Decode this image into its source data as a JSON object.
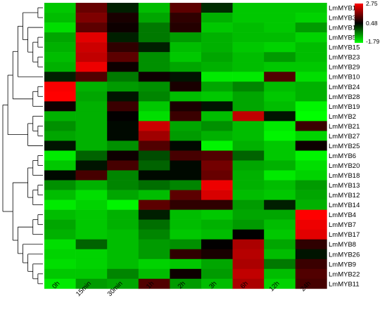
{
  "chart_data": {
    "type": "heatmap",
    "title": "",
    "xlabel": "",
    "ylabel": "",
    "columns": [
      "0h",
      "15min",
      "30min",
      "1h",
      "2h",
      "3h",
      "6h",
      "12h",
      "24h"
    ],
    "rows": [
      "LmMYB1",
      "LmMYB3",
      "LmMYB16",
      "LmMYB5",
      "LmMYB15",
      "LmMYB23",
      "LmMYB29",
      "LmMYB10",
      "LmMYB24",
      "LmMYB28",
      "LmMYB19",
      "LmMYB2",
      "LmMYB21",
      "LmMYB27",
      "LmMYB25",
      "LmMYB6",
      "LmMYB20",
      "LmMYB18",
      "LmMYB13",
      "LmMYB12",
      "LmMYB14",
      "LmMYB4",
      "LmMYB7",
      "LmMYB17",
      "LmMYB8",
      "LmMYB26",
      "LmMYB9",
      "LmMYB22",
      "LmMYB11"
    ],
    "values": [
      [
        -1.3,
        1.4,
        0.2,
        -1.2,
        1.3,
        0.1,
        -1.3,
        -1.3,
        -1.3
      ],
      [
        -1.2,
        1.6,
        0.7,
        -1.0,
        0.9,
        -1.1,
        -1.3,
        -1.3,
        -1.4
      ],
      [
        -1.5,
        1.3,
        0.6,
        -0.6,
        0.8,
        -1.3,
        -1.2,
        -1.3,
        -0.9
      ],
      [
        -1.0,
        2.5,
        0.2,
        -0.6,
        -0.9,
        -1.1,
        -1.2,
        -1.2,
        -1.4
      ],
      [
        -1.1,
        2.3,
        0.9,
        0.2,
        -1.2,
        -1.1,
        -1.3,
        -1.4,
        -1.2
      ],
      [
        -1.2,
        2.2,
        1.3,
        -0.8,
        -1.3,
        -1.0,
        -1.2,
        -0.9,
        -1.2
      ],
      [
        -1.1,
        2.6,
        0.6,
        -0.8,
        -1.0,
        -1.1,
        -1.2,
        -1.3,
        -1.3
      ],
      [
        0.2,
        1.2,
        -0.6,
        0.6,
        0.3,
        -1.6,
        -1.6,
        1.2,
        -1.5
      ],
      [
        2.7,
        -1.1,
        -0.9,
        -0.8,
        0.7,
        -1.0,
        -0.7,
        -1.2,
        -1.1
      ],
      [
        2.75,
        -1.0,
        0.3,
        -0.7,
        -1.2,
        -1.3,
        -1.0,
        -1.3,
        -1.1
      ],
      [
        0.6,
        -1.1,
        1.0,
        -1.3,
        0.7,
        0.3,
        -1.0,
        -1.2,
        -1.7
      ],
      [
        -1.1,
        -1.1,
        0.5,
        -1.5,
        1.0,
        -1.2,
        2.2,
        0.3,
        -1.79
      ],
      [
        -0.8,
        -1.1,
        0.4,
        2.3,
        -1.0,
        -0.8,
        -1.2,
        -1.6,
        1.0
      ],
      [
        -1.0,
        -1.1,
        0.4,
        1.9,
        -0.9,
        -1.1,
        -1.2,
        -1.7,
        -1.4
      ],
      [
        0.3,
        -1.1,
        -0.8,
        1.2,
        0.4,
        -1.7,
        -1.1,
        -1.3,
        0.6
      ],
      [
        -1.6,
        -0.4,
        0.6,
        -0.2,
        1.1,
        1.2,
        -0.4,
        -1.3,
        -1.7
      ],
      [
        -1.3,
        0.3,
        1.1,
        -0.4,
        0.4,
        1.5,
        -1.0,
        -1.1,
        -1.5
      ],
      [
        0.4,
        1.1,
        -0.7,
        0.4,
        0.4,
        1.4,
        -1.1,
        -1.6,
        -1.4
      ],
      [
        -0.8,
        -1.1,
        -0.7,
        -0.5,
        -0.7,
        2.6,
        -1.1,
        -1.2,
        -0.9
      ],
      [
        -1.2,
        -1.5,
        -1.0,
        -1.2,
        1.3,
        2.4,
        -1.2,
        -1.3,
        -1.0
      ],
      [
        -1.6,
        -1.4,
        -1.7,
        1.3,
        0.9,
        0.9,
        -0.9,
        0.2,
        -1.1
      ],
      [
        -1.2,
        -1.3,
        -1.1,
        0.2,
        -1.2,
        -1.3,
        -1.0,
        -1.0,
        2.75
      ],
      [
        -1.0,
        -1.3,
        -1.1,
        -0.5,
        -1.2,
        -1.1,
        -0.9,
        -1.2,
        2.6
      ],
      [
        -1.1,
        -1.3,
        -1.2,
        -0.7,
        -1.3,
        -1.2,
        0.5,
        -1.3,
        2.5
      ],
      [
        -1.5,
        -0.4,
        -1.2,
        -0.9,
        -0.8,
        0.5,
        2.0,
        -1.0,
        0.9
      ],
      [
        -1.4,
        -1.4,
        -1.2,
        -0.9,
        0.9,
        0.7,
        2.1,
        -1.2,
        0.3
      ],
      [
        -1.5,
        -1.4,
        -1.2,
        -1.4,
        -1.3,
        -1.0,
        2.0,
        -0.6,
        1.0
      ],
      [
        -1.3,
        -1.3,
        -0.7,
        -1.2,
        0.6,
        -0.9,
        2.2,
        -1.2,
        1.2
      ],
      [
        -1.6,
        -0.9,
        -1.0,
        1.2,
        -0.9,
        -1.2,
        2.0,
        -1.4,
        1.1
      ]
    ],
    "scale": {
      "min": -1.79,
      "mid": 0.48,
      "max": 2.75,
      "labels": [
        "2.75",
        "0.48",
        "-1.79"
      ]
    },
    "colors": {
      "low": "#00ff00",
      "mid": "#000000",
      "high": "#ff0000"
    },
    "legend_position": "top-right",
    "dendrogram": "left"
  }
}
